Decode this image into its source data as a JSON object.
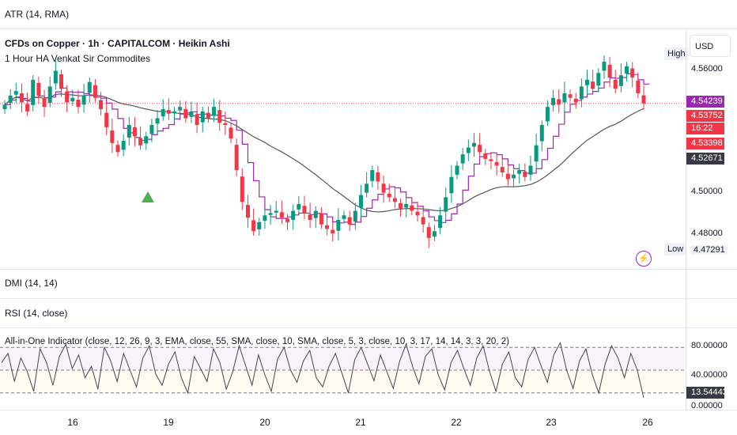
{
  "panes": {
    "atr_label": "ATR (14, RMA)",
    "dmi_label": "DMI (14, 14)",
    "rsi_label": "RSI (14, close)",
    "aio_label": "All-in-One Indicator (close, 12, 26, 9, 3, EMA, close, 55, SMA, close, 10, SMA, close, 5, 3, close, 10, 3, 17, 14, 14, 3, 3, 20, 2)"
  },
  "chart": {
    "title": "CFDs on Copper · 1h · CAPITALCOM · Heikin Ashi",
    "subtitle": "1 Hour HA Venkat Sir Commodites",
    "currency": "USD",
    "high_label": "High",
    "low_label": "Low",
    "low_value": "4.47291",
    "bolt_icon": "lightning-icon"
  },
  "price_axis": {
    "ticks": [
      "4.56000",
      "4.50000",
      "4.48000"
    ],
    "tags": [
      {
        "value": "4.54239",
        "color": "#9c27b0"
      },
      {
        "value": "4.53752",
        "color": "#f23645"
      },
      {
        "value": "16:22",
        "color": "#f23645"
      },
      {
        "value": "4.53398",
        "color": "#f23645"
      },
      {
        "value": "4.52671",
        "color": "#363a45"
      }
    ]
  },
  "osc_axis": {
    "ticks": [
      "80.00000",
      "40.00000",
      "0.00000"
    ],
    "current": "13.54443",
    "current_color": "#363a45"
  },
  "time_axis": [
    "16",
    "19",
    "20",
    "21",
    "22",
    "23",
    "26"
  ],
  "colors": {
    "up": "#089981",
    "down": "#f23645",
    "ma_fast": "#9c27b0",
    "ma_slow": "#555555"
  },
  "chart_data": {
    "type": "candlestick",
    "price_range": [
      4.465,
      4.57
    ],
    "last_price": 4.53752,
    "osc_range": [
      0,
      100
    ],
    "osc_levels": [
      80,
      50,
      20
    ],
    "candles_close": [
      4.537,
      4.541,
      4.543,
      4.538,
      4.534,
      4.548,
      4.541,
      4.536,
      4.545,
      4.552,
      4.544,
      4.538,
      4.54,
      4.536,
      4.541,
      4.547,
      4.54,
      4.535,
      4.527,
      4.52,
      4.516,
      4.521,
      4.528,
      4.523,
      4.519,
      4.523,
      4.528,
      4.531,
      4.535,
      4.533,
      4.534,
      4.536,
      4.531,
      4.534,
      4.528,
      4.534,
      4.531,
      4.536,
      4.529,
      4.528,
      4.522,
      4.508,
      4.494,
      4.487,
      4.481,
      4.485,
      4.488,
      4.489,
      4.49,
      4.487,
      4.485,
      4.49,
      4.493,
      4.489,
      4.486,
      4.49,
      4.484,
      4.482,
      4.48,
      4.486,
      4.488,
      4.484,
      4.49,
      4.497,
      4.502,
      4.508,
      4.503,
      4.498,
      4.496,
      4.494,
      4.491,
      4.493,
      4.49,
      4.488,
      4.484,
      4.478,
      4.481,
      4.488,
      4.496,
      4.505,
      4.51,
      4.515,
      4.518,
      4.52,
      4.516,
      4.513,
      4.512,
      4.51,
      4.507,
      4.504,
      4.506,
      4.508,
      4.505,
      4.51,
      4.519,
      4.528,
      4.536,
      4.54,
      4.537,
      4.542,
      4.54,
      4.538,
      4.545,
      4.548,
      4.544,
      4.551,
      4.556,
      4.549,
      4.544,
      4.55,
      4.554,
      4.549,
      4.542,
      4.53752
    ],
    "osc_values": [
      60,
      72,
      35,
      66,
      48,
      22,
      78,
      60,
      30,
      68,
      84,
      52,
      70,
      40,
      55,
      25,
      80,
      62,
      35,
      72,
      50,
      28,
      66,
      82,
      45,
      30,
      58,
      74,
      40,
      20,
      68,
      52,
      35,
      78,
      60,
      25,
      48,
      82,
      56,
      30,
      70,
      44,
      22,
      65,
      80,
      50,
      34,
      62,
      76,
      40,
      28,
      55,
      72,
      46,
      20,
      64,
      80,
      58,
      36,
      70,
      48,
      26,
      62,
      84,
      55,
      32,
      68,
      78,
      44,
      24,
      60,
      76,
      52,
      30,
      66,
      82,
      48,
      22,
      58,
      74,
      40,
      28,
      64,
      80,
      56,
      34,
      70,
      86,
      50,
      26,
      62,
      78,
      44,
      20,
      58,
      82,
      66,
      40,
      72,
      50,
      13.54443
    ]
  }
}
